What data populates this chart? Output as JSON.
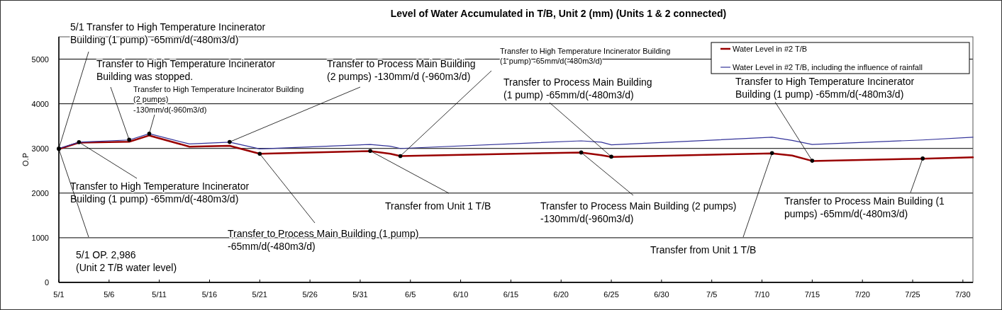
{
  "chart_data": {
    "type": "line",
    "title": "Level of Water Accumulated in T/B, Unit 2 (mm) (Units 1 & 2 connected)",
    "ylabel": "O.P",
    "x": [
      "--05-01",
      "--05-03",
      "--05-08",
      "--05-10",
      "--05-14",
      "--05-18",
      "--05-21",
      "--06-01",
      "--06-03",
      "--06-04",
      "--06-22",
      "--06-24",
      "--06-25",
      "--07-11",
      "--07-13",
      "--07-15",
      "--07-26",
      "--07-31"
    ],
    "series": [
      {
        "name": "Water Level in #2 T/B",
        "color": "#990000",
        "values": [
          2986,
          3130,
          3150,
          3290,
          3040,
          3060,
          2880,
          2940,
          2880,
          2830,
          2910,
          2850,
          2810,
          2890,
          2840,
          2720,
          2770,
          2800
        ]
      },
      {
        "name": "Water Level in #2 T/B, including the influence of rainfall",
        "color": "#333399",
        "values": [
          3000,
          3140,
          3190,
          3330,
          3100,
          3140,
          2990,
          3090,
          3050,
          3000,
          3170,
          3140,
          3080,
          3250,
          3180,
          3090,
          3190,
          3250
        ]
      }
    ],
    "xlim": [
      "--05-01",
      "--07-31"
    ],
    "xticks": [
      {
        "value": "--05-01",
        "label": "5/1"
      },
      {
        "value": "--05-06",
        "label": "5/6"
      },
      {
        "value": "--05-11",
        "label": "5/11"
      },
      {
        "value": "--05-16",
        "label": "5/16"
      },
      {
        "value": "--05-21",
        "label": "5/21"
      },
      {
        "value": "--05-26",
        "label": "5/26"
      },
      {
        "value": "--05-31",
        "label": "5/31"
      },
      {
        "value": "--06-05",
        "label": "6/5"
      },
      {
        "value": "--06-10",
        "label": "6/10"
      },
      {
        "value": "--06-15",
        "label": "6/15"
      },
      {
        "value": "--06-20",
        "label": "6/20"
      },
      {
        "value": "--06-25",
        "label": "6/25"
      },
      {
        "value": "--06-30",
        "label": "6/30"
      },
      {
        "value": "--07-05",
        "label": "7/5"
      },
      {
        "value": "--07-10",
        "label": "7/10"
      },
      {
        "value": "--07-15",
        "label": "7/15"
      },
      {
        "value": "--07-20",
        "label": "7/20"
      },
      {
        "value": "--07-25",
        "label": "7/25"
      },
      {
        "value": "--07-30",
        "label": "7/30"
      }
    ],
    "ylim": [
      0,
      5500
    ],
    "yticks": [
      0,
      1000,
      2000,
      3000,
      4000,
      5000
    ],
    "grid": "y",
    "legend": "top right",
    "marker": "none",
    "line_style": "solid",
    "annotations": [
      {
        "text": "5/1 Transfer to High Temperature Incinerator\nBuilding  (1 pump)  -65mm/d(-480m3/d)",
        "x": "--05-01",
        "y": 3000
      },
      {
        "text": "Transfer to High Temperature Incinerator\nBuilding was stopped.",
        "x": "--05-08",
        "y": 3195
      },
      {
        "text": "Transfer to High Temperature Incinerator Building\n(2 pumps)\n-130mm/d(-960m3/d)",
        "x": "--05-10",
        "y": 3330
      },
      {
        "text": "Transfer to High Temperature Incinerator\nBuilding  (1 pump) -65mm/d(-480m3/d)",
        "x": "--05-03",
        "y": 3140
      },
      {
        "text": "5/1  OP. 2,986\n(Unit 2 T/B water level)",
        "x": "--05-01",
        "y": 2986
      },
      {
        "text": "Transfer to Process Main Building  (1 pump)\n-65mm/d(-480m3/d)",
        "x": "--05-21",
        "y": 2880
      },
      {
        "text": "Transfer to Process Main Building\n(2 pumps) -130mm/d (-960m3/d)",
        "x": "--05-18",
        "y": 3145
      },
      {
        "text": "Transfer to High Temperature Incinerator Building\n(1 pump)  -65mm/d(-480m3/d)",
        "x": "--06-04",
        "y": 2830
      },
      {
        "text": "Transfer from Unit 1 T/B",
        "x": "--06-01",
        "y": 2945
      },
      {
        "text": "Transfer to Process Main Building\n(1 pump) -65mm/d(-480m3/d)",
        "x": "--06-25",
        "y": 2815
      },
      {
        "text": "Transfer to Process Main Building  (2 pumps)\n-130mm/d(-960m3/d)",
        "x": "--06-22",
        "y": 2910
      },
      {
        "text": "Transfer to High Temperature Incinerator\nBuilding  (1 pump)  -65mm/d(-480m3/d)",
        "x": "--07-15",
        "y": 2725
      },
      {
        "text": "Transfer from Unit 1 T/B",
        "x": "--07-11",
        "y": 2895
      },
      {
        "text": "Transfer to Process Main Building  (1\npumps) -65mm/d(-480m3/d)",
        "x": "--07-26",
        "y": 2775
      }
    ]
  }
}
